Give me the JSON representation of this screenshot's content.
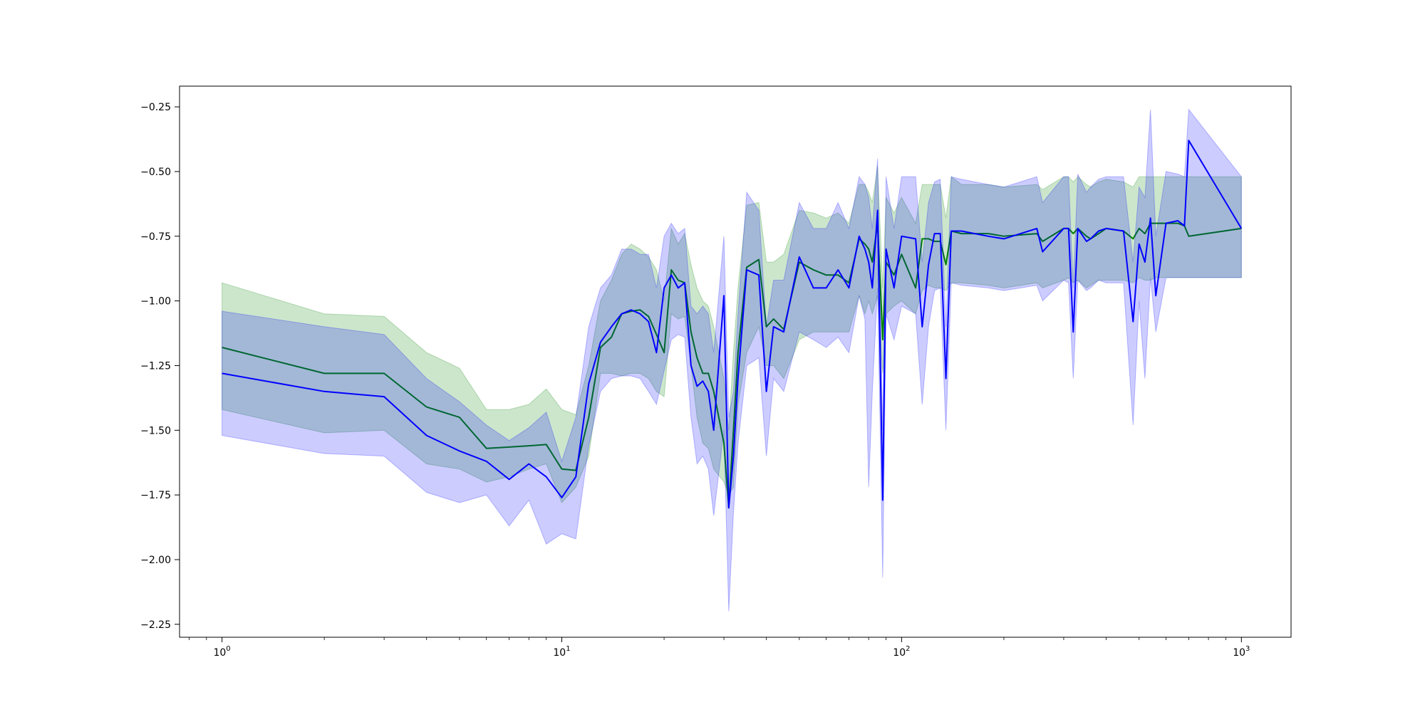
{
  "chart_data": {
    "type": "line",
    "title": "",
    "xlabel": "",
    "ylabel": "",
    "xscale": "log",
    "xlim": [
      0.75,
      1400
    ],
    "ylim": [
      -2.3,
      -0.17
    ],
    "grid": false,
    "legend": "none",
    "x_ticks": [
      {
        "value": 1,
        "base": "10",
        "exp": "0"
      },
      {
        "value": 10,
        "base": "10",
        "exp": "1"
      },
      {
        "value": 100,
        "base": "10",
        "exp": "2"
      },
      {
        "value": 1000,
        "base": "10",
        "exp": "3"
      }
    ],
    "y_ticks": [
      {
        "value": -0.25,
        "label": "−0.25"
      },
      {
        "value": -0.5,
        "label": "−0.50"
      },
      {
        "value": -0.75,
        "label": "−0.75"
      },
      {
        "value": -1.0,
        "label": "−1.00"
      },
      {
        "value": -1.25,
        "label": "−1.25"
      },
      {
        "value": -1.5,
        "label": "−1.50"
      },
      {
        "value": -1.75,
        "label": "−1.75"
      },
      {
        "value": -2.0,
        "label": "−2.00"
      },
      {
        "value": -2.25,
        "label": "−2.25"
      }
    ],
    "series": [
      {
        "color": "#008000",
        "band_color": "#008000",
        "band_opacity": 0.2,
        "x": [
          1,
          2,
          3,
          4,
          5,
          6,
          7,
          8,
          9,
          10,
          11,
          12,
          13,
          14,
          15,
          16,
          17,
          18,
          19,
          20,
          21,
          22,
          23,
          24,
          25,
          26,
          27,
          28,
          30,
          31,
          32,
          33,
          35,
          38,
          40,
          42,
          45,
          50,
          55,
          60,
          65,
          70,
          75,
          78,
          80,
          82,
          85,
          88,
          90,
          95,
          100,
          110,
          115,
          120,
          125,
          130,
          135,
          140,
          150,
          180,
          200,
          250,
          260,
          300,
          310,
          320,
          330,
          350,
          360,
          380,
          400,
          450,
          480,
          500,
          520,
          540,
          560,
          600,
          650,
          680,
          700,
          1000
        ],
        "y": [
          -1.18,
          -1.28,
          -1.28,
          -1.41,
          -1.45,
          -1.57,
          -1.565,
          -1.56,
          -1.555,
          -1.65,
          -1.655,
          -1.45,
          -1.18,
          -1.14,
          -1.05,
          -1.04,
          -1.035,
          -1.06,
          -1.13,
          -1.2,
          -0.88,
          -0.92,
          -0.93,
          -1.12,
          -1.22,
          -1.28,
          -1.28,
          -1.35,
          -1.55,
          -1.8,
          -1.5,
          -1.2,
          -0.87,
          -0.84,
          -1.1,
          -1.07,
          -1.11,
          -0.85,
          -0.88,
          -0.9,
          -0.9,
          -0.93,
          -0.76,
          -0.78,
          -0.8,
          -0.85,
          -0.7,
          -1.15,
          -0.85,
          -0.9,
          -0.82,
          -0.95,
          -0.76,
          -0.76,
          -0.77,
          -0.77,
          -0.86,
          -0.73,
          -0.74,
          -0.74,
          -0.75,
          -0.74,
          -0.77,
          -0.72,
          -0.72,
          -0.74,
          -0.72,
          -0.75,
          -0.76,
          -0.74,
          -0.72,
          -0.73,
          -0.76,
          -0.72,
          -0.74,
          -0.7,
          -0.7,
          -0.7,
          -0.7,
          -0.71,
          -0.75,
          -0.72
        ],
        "lower": [
          -1.42,
          -1.51,
          -1.5,
          -1.63,
          -1.65,
          -1.7,
          -1.68,
          -1.65,
          -1.63,
          -1.78,
          -1.72,
          -1.6,
          -1.28,
          -1.28,
          -1.29,
          -1.28,
          -1.28,
          -1.3,
          -1.35,
          -1.37,
          -1.05,
          -1.07,
          -1.06,
          -1.25,
          -1.45,
          -1.55,
          -1.57,
          -1.65,
          -1.7,
          -1.75,
          -1.72,
          -1.4,
          -1.2,
          -1.1,
          -1.25,
          -1.25,
          -1.3,
          -1.15,
          -1.12,
          -1.12,
          -1.12,
          -1.12,
          -0.98,
          -1.05,
          -1.0,
          -1.05,
          -0.98,
          -1.28,
          -1.05,
          -1.02,
          -1.0,
          -1.05,
          -0.96,
          -0.94,
          -0.95,
          -0.95,
          -0.96,
          -0.93,
          -0.93,
          -0.94,
          -0.95,
          -0.93,
          -0.95,
          -0.92,
          -0.91,
          -0.93,
          -0.92,
          -0.95,
          -0.94,
          -0.92,
          -0.92,
          -0.92,
          -0.93,
          -0.91,
          -0.92,
          -0.92,
          -0.91,
          -0.91,
          -0.91,
          -0.91,
          -0.91,
          -0.91
        ],
        "upper": [
          -0.93,
          -1.05,
          -1.06,
          -1.2,
          -1.26,
          -1.42,
          -1.42,
          -1.4,
          -1.34,
          -1.42,
          -1.44,
          -1.25,
          -1.0,
          -0.92,
          -0.82,
          -0.78,
          -0.8,
          -0.83,
          -0.88,
          -1.0,
          -0.72,
          -0.78,
          -0.74,
          -0.86,
          -0.95,
          -1.0,
          -1.02,
          -1.1,
          -1.3,
          -1.5,
          -1.2,
          -0.95,
          -0.63,
          -0.62,
          -0.85,
          -0.85,
          -0.82,
          -0.65,
          -0.66,
          -0.68,
          -0.66,
          -0.7,
          -0.55,
          -0.55,
          -0.58,
          -0.62,
          -0.48,
          -0.95,
          -0.6,
          -0.66,
          -0.6,
          -0.7,
          -0.55,
          -0.55,
          -0.55,
          -0.55,
          -0.68,
          -0.52,
          -0.55,
          -0.55,
          -0.56,
          -0.55,
          -0.57,
          -0.52,
          -0.52,
          -0.54,
          -0.52,
          -0.55,
          -0.56,
          -0.54,
          -0.53,
          -0.54,
          -0.56,
          -0.52,
          -0.52,
          -0.52,
          -0.52,
          -0.52,
          -0.52,
          -0.52,
          -0.52,
          -0.52
        ]
      },
      {
        "color": "#0000ff",
        "band_color": "#0000ff",
        "band_opacity": 0.2,
        "x": [
          1,
          2,
          3,
          4,
          5,
          6,
          7,
          8,
          9,
          10,
          11,
          12,
          13,
          14,
          15,
          16,
          17,
          18,
          19,
          20,
          21,
          22,
          23,
          24,
          25,
          26,
          27,
          28,
          30,
          31,
          32,
          33,
          35,
          38,
          40,
          42,
          45,
          50,
          55,
          60,
          65,
          70,
          75,
          78,
          80,
          82,
          85,
          88,
          90,
          95,
          100,
          110,
          115,
          120,
          125,
          130,
          135,
          140,
          150,
          180,
          200,
          250,
          260,
          300,
          310,
          320,
          330,
          350,
          360,
          380,
          400,
          450,
          480,
          500,
          520,
          540,
          560,
          600,
          650,
          680,
          700,
          1000
        ],
        "y": [
          -1.28,
          -1.35,
          -1.37,
          -1.52,
          -1.58,
          -1.62,
          -1.69,
          -1.63,
          -1.68,
          -1.76,
          -1.68,
          -1.32,
          -1.16,
          -1.1,
          -1.05,
          -1.035,
          -1.05,
          -1.08,
          -1.2,
          -0.95,
          -0.9,
          -0.95,
          -0.93,
          -1.25,
          -1.33,
          -1.31,
          -1.35,
          -1.5,
          -0.98,
          -1.8,
          -1.6,
          -1.3,
          -0.88,
          -0.9,
          -1.35,
          -1.1,
          -1.12,
          -0.83,
          -0.95,
          -0.95,
          -0.88,
          -0.95,
          -0.75,
          -0.8,
          -0.85,
          -0.95,
          -0.65,
          -1.77,
          -0.8,
          -0.95,
          -0.75,
          -0.76,
          -1.1,
          -0.86,
          -0.74,
          -0.74,
          -1.3,
          -0.73,
          -0.73,
          -0.75,
          -0.76,
          -0.72,
          -0.81,
          -0.72,
          -0.72,
          -1.12,
          -0.72,
          -0.77,
          -0.76,
          -0.73,
          -0.72,
          -0.73,
          -1.08,
          -0.78,
          -0.85,
          -0.68,
          -0.98,
          -0.7,
          -0.69,
          -0.71,
          -0.38,
          -0.72
        ],
        "lower": [
          -1.52,
          -1.59,
          -1.6,
          -1.74,
          -1.78,
          -1.75,
          -1.87,
          -1.77,
          -1.94,
          -1.9,
          -1.92,
          -1.56,
          -1.35,
          -1.3,
          -1.29,
          -1.29,
          -1.3,
          -1.35,
          -1.4,
          -1.27,
          -1.15,
          -1.13,
          -1.14,
          -1.45,
          -1.63,
          -1.6,
          -1.65,
          -1.83,
          -1.5,
          -2.2,
          -1.82,
          -1.55,
          -1.25,
          -1.22,
          -1.6,
          -1.3,
          -1.35,
          -1.12,
          -1.15,
          -1.18,
          -1.14,
          -1.2,
          -0.98,
          -1.07,
          -1.72,
          -1.35,
          -0.95,
          -2.07,
          -1.05,
          -1.15,
          -1.02,
          -1.05,
          -1.4,
          -1.1,
          -0.96,
          -0.95,
          -1.5,
          -0.93,
          -0.94,
          -0.95,
          -0.96,
          -0.94,
          -1.0,
          -0.92,
          -0.93,
          -1.3,
          -0.92,
          -0.96,
          -0.95,
          -0.92,
          -0.93,
          -0.93,
          -1.48,
          -1.0,
          -1.3,
          -0.91,
          -1.12,
          -0.91,
          -0.91,
          -0.91,
          -0.91,
          -0.91
        ],
        "upper": [
          -1.04,
          -1.1,
          -1.13,
          -1.3,
          -1.39,
          -1.48,
          -1.54,
          -1.49,
          -1.43,
          -1.62,
          -1.45,
          -1.1,
          -0.95,
          -0.9,
          -0.8,
          -0.8,
          -0.82,
          -0.82,
          -0.95,
          -0.75,
          -0.7,
          -0.74,
          -0.72,
          -1.02,
          -1.05,
          -1.02,
          -1.05,
          -1.2,
          -0.75,
          -1.45,
          -1.35,
          -1.05,
          -0.58,
          -0.65,
          -1.1,
          -0.92,
          -0.92,
          -0.62,
          -0.72,
          -0.72,
          -0.62,
          -0.72,
          -0.52,
          -0.55,
          -0.6,
          -0.72,
          -0.45,
          -1.5,
          -0.52,
          -0.72,
          -0.52,
          -0.52,
          -0.85,
          -0.62,
          -0.54,
          -0.53,
          -1.1,
          -0.52,
          -0.53,
          -0.55,
          -0.56,
          -0.52,
          -0.62,
          -0.52,
          -0.52,
          -0.95,
          -0.51,
          -0.58,
          -0.56,
          -0.53,
          -0.52,
          -0.52,
          -0.85,
          -0.56,
          -0.6,
          -0.26,
          -0.75,
          -0.5,
          -0.51,
          -0.52,
          -0.26,
          -0.52
        ]
      }
    ]
  }
}
